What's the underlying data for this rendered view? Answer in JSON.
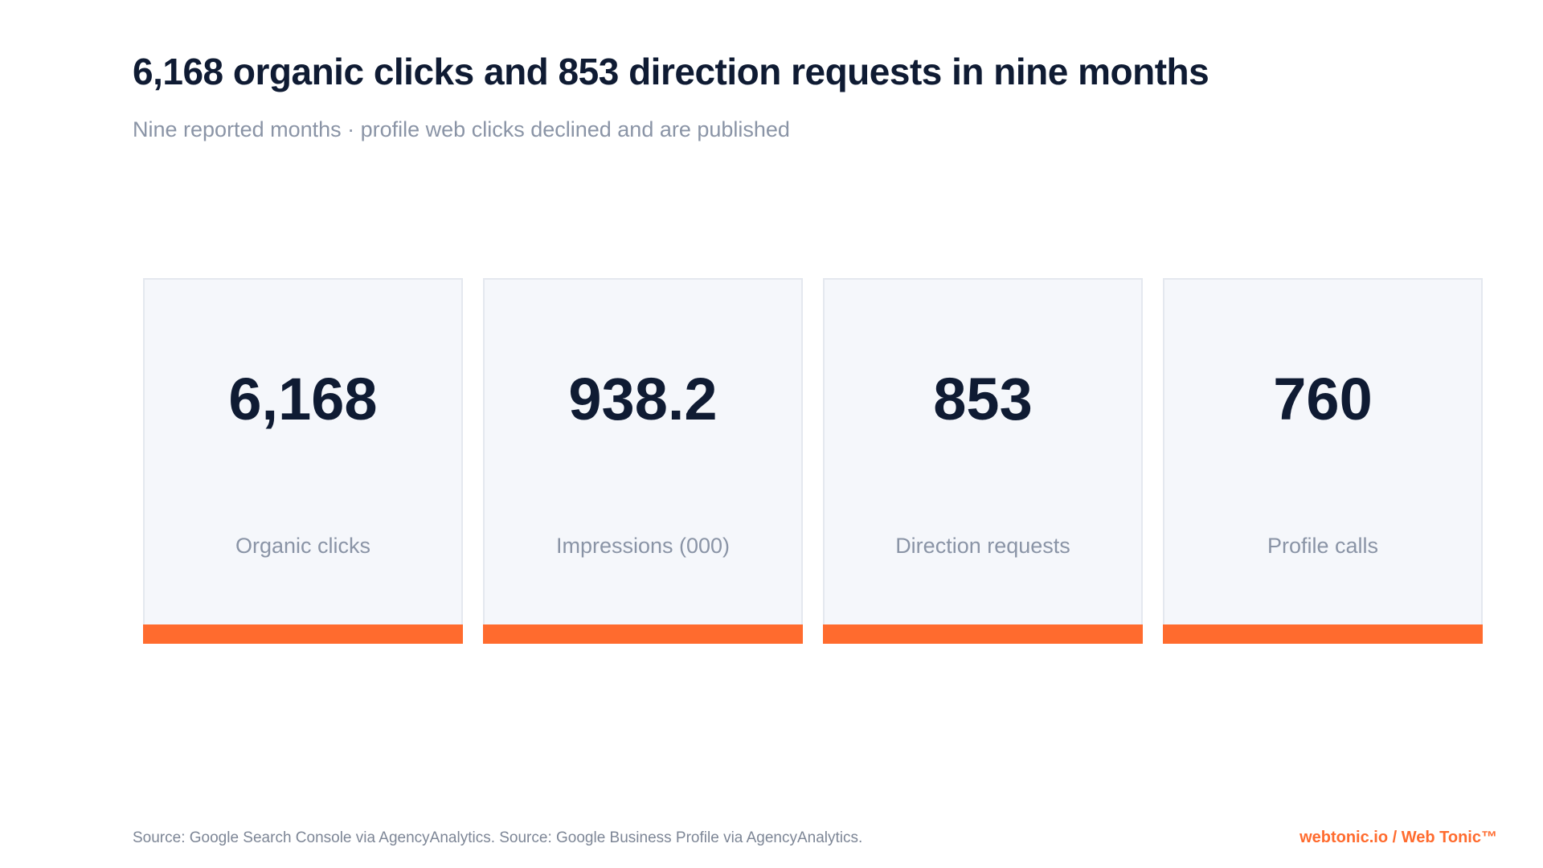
{
  "header": {
    "title": "6,168 organic clicks and 853 direction requests in nine months",
    "subtitle": "Nine reported months · profile web clicks declined and are published"
  },
  "chart_data": {
    "type": "table",
    "title": "6,168 organic clicks and 853 direction requests in nine months",
    "subtitle": "Nine reported months · profile web clicks declined and are published",
    "cards": [
      {
        "value": "6,168",
        "label": "Organic clicks"
      },
      {
        "value": "938.2",
        "label": "Impressions (000)"
      },
      {
        "value": "853",
        "label": "Direction requests"
      },
      {
        "value": "760",
        "label": "Profile calls"
      }
    ],
    "accent_color": "#ff6b2e"
  },
  "footer": {
    "source": "Source: Google Search Console via AgencyAnalytics. Source: Google Business Profile via AgencyAnalytics.",
    "brand": "webtonic.io / Web Tonic™"
  }
}
